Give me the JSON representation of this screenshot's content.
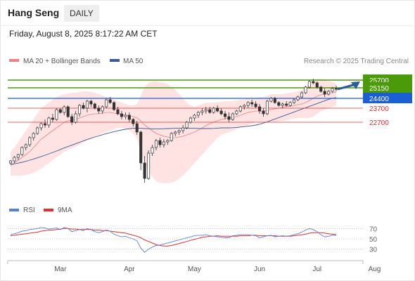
{
  "header": {
    "title": "Hang Seng",
    "period": "DAILY",
    "date": "Friday, August 8, 2025 8:17:22 AM CET"
  },
  "legend": {
    "bb_label": "MA 20 + Bollinger Bands",
    "ma50_label": "MA 50",
    "credit": "Research © 2025 Trading Central"
  },
  "rsi_legend": {
    "rsi_label": "RSI",
    "ma_label": "9MA"
  },
  "colors": {
    "up": "#ffffff",
    "down": "#333333",
    "band": "#ffd9d9",
    "ma20": "#f08080",
    "ma50": "#3a5a9a",
    "resistance": "#4a9a0a",
    "pivot": "#1a5fd4",
    "support": "#e03030",
    "rsi": "#5b7fd6",
    "rsi_ma": "#e03030",
    "arrow": "#2a5aa0"
  },
  "chart_data": [
    {
      "type": "candlestick",
      "x_labels": [
        "Mar",
        "Apr",
        "May",
        "Jun",
        "Jul",
        "Aug"
      ],
      "ylim": [
        18000,
        26400
      ],
      "levels": [
        {
          "label": "25700",
          "value": 25700,
          "kind": "resistance"
        },
        {
          "label": "25150",
          "value": 25150,
          "kind": "resistance"
        },
        {
          "label": "24400",
          "value": 24400,
          "kind": "pivot"
        },
        {
          "label": "23700",
          "value": 23700,
          "kind": "support"
        },
        {
          "label": "22700",
          "value": 22700,
          "kind": "support"
        }
      ],
      "ohlc": [
        [
          19800,
          20000,
          19700,
          19950
        ],
        [
          19950,
          20300,
          19800,
          20200
        ],
        [
          20200,
          20450,
          20000,
          20400
        ],
        [
          20400,
          21000,
          20300,
          20900
        ],
        [
          20900,
          21200,
          20700,
          21100
        ],
        [
          21100,
          21700,
          20950,
          21600
        ],
        [
          21600,
          22000,
          21400,
          21900
        ],
        [
          21900,
          22400,
          21800,
          22300
        ],
        [
          22300,
          22700,
          22100,
          22600
        ],
        [
          22600,
          22900,
          22300,
          22500
        ],
        [
          22500,
          23100,
          22300,
          23000
        ],
        [
          23000,
          23300,
          22700,
          22900
        ],
        [
          22900,
          23700,
          22800,
          23600
        ],
        [
          23600,
          23700,
          23300,
          23400
        ],
        [
          23400,
          23900,
          23200,
          23800
        ],
        [
          23800,
          23900,
          23000,
          23100
        ],
        [
          23100,
          23300,
          22500,
          22700
        ],
        [
          22700,
          23500,
          22600,
          23300
        ],
        [
          23300,
          24000,
          23100,
          23900
        ],
        [
          23900,
          24100,
          23600,
          23700
        ],
        [
          23700,
          24300,
          23400,
          24200
        ],
        [
          24200,
          24300,
          23800,
          24000
        ],
        [
          24000,
          24100,
          23600,
          23700
        ],
        [
          23700,
          23900,
          23300,
          23500
        ],
        [
          23500,
          23900,
          23300,
          23800
        ],
        [
          23800,
          24400,
          23700,
          24300
        ],
        [
          24300,
          24500,
          24000,
          24100
        ],
        [
          24100,
          24200,
          23500,
          23600
        ],
        [
          23600,
          23800,
          23200,
          23300
        ],
        [
          23300,
          23500,
          22900,
          23100
        ],
        [
          23100,
          23400,
          22900,
          23200
        ],
        [
          23200,
          23400,
          22700,
          22900
        ],
        [
          22900,
          23000,
          22400,
          22600
        ],
        [
          22600,
          22800,
          21800,
          22000
        ],
        [
          22000,
          22100,
          19300,
          19800
        ],
        [
          19800,
          20300,
          18400,
          18700
        ],
        [
          18700,
          20700,
          18600,
          20500
        ],
        [
          20500,
          21100,
          20300,
          20900
        ],
        [
          20900,
          21500,
          20700,
          21400
        ],
        [
          21400,
          21600,
          20900,
          21100
        ],
        [
          21100,
          21500,
          20900,
          21300
        ],
        [
          21300,
          21500,
          21100,
          21400
        ],
        [
          21400,
          22000,
          21300,
          21900
        ],
        [
          21900,
          22100,
          21700,
          22000
        ],
        [
          22000,
          22200,
          21800,
          22100
        ],
        [
          22100,
          22500,
          21900,
          22300
        ],
        [
          22300,
          22800,
          22200,
          22700
        ],
        [
          22700,
          23100,
          22600,
          23000
        ],
        [
          23000,
          23300,
          22800,
          23200
        ],
        [
          23200,
          23500,
          23000,
          23400
        ],
        [
          23400,
          23700,
          23200,
          23500
        ],
        [
          23500,
          23800,
          23300,
          23600
        ],
        [
          23600,
          23800,
          23300,
          23400
        ],
        [
          23400,
          23800,
          23300,
          23700
        ],
        [
          23700,
          23900,
          23400,
          23500
        ],
        [
          23500,
          23700,
          23200,
          23300
        ],
        [
          23300,
          23500,
          22900,
          23100
        ],
        [
          23100,
          23400,
          22700,
          22900
        ],
        [
          22900,
          23400,
          22800,
          23300
        ],
        [
          23300,
          23600,
          23200,
          23500
        ],
        [
          23500,
          23900,
          23400,
          23800
        ],
        [
          23800,
          24000,
          23600,
          23900
        ],
        [
          23900,
          24200,
          23700,
          24100
        ],
        [
          24100,
          24300,
          23800,
          24000
        ],
        [
          24000,
          24200,
          23700,
          23800
        ],
        [
          23800,
          24000,
          23300,
          23500
        ],
        [
          23500,
          23700,
          23100,
          23300
        ],
        [
          23300,
          24300,
          23200,
          24200
        ],
        [
          24200,
          24500,
          24100,
          24400
        ],
        [
          24400,
          24500,
          24000,
          24100
        ],
        [
          24100,
          24200,
          23800,
          23900
        ],
        [
          23900,
          24100,
          23700,
          24000
        ],
        [
          24000,
          24200,
          23800,
          23900
        ],
        [
          23900,
          24200,
          23800,
          24100
        ],
        [
          24100,
          24400,
          24000,
          24300
        ],
        [
          24300,
          24600,
          24200,
          24500
        ],
        [
          24500,
          24900,
          24400,
          24800
        ],
        [
          24800,
          25300,
          24700,
          25200
        ],
        [
          25200,
          25700,
          25100,
          25600
        ],
        [
          25600,
          25800,
          25400,
          25500
        ],
        [
          25500,
          25600,
          25100,
          25200
        ],
        [
          25200,
          25300,
          24800,
          24900
        ],
        [
          24900,
          25100,
          24500,
          24700
        ],
        [
          24700,
          25000,
          24600,
          24900
        ],
        [
          24900,
          25200,
          24800,
          25100
        ],
        [
          25100,
          25300,
          24900,
          25050
        ]
      ],
      "ma20": [
        19600,
        19800,
        20000,
        20200,
        20400,
        20600,
        20900,
        21200,
        21500,
        21700,
        21900,
        22100,
        22300,
        22500,
        22700,
        22800,
        22850,
        22900,
        23000,
        23100,
        23200,
        23250,
        23300,
        23300,
        23350,
        23400,
        23400,
        23350,
        23300,
        23250,
        23200,
        23150,
        23100,
        23000,
        22800,
        22500,
        22300,
        22100,
        21900,
        21800,
        21700,
        21650,
        21600,
        21600,
        21650,
        21700,
        21800,
        21900,
        22000,
        22150,
        22300,
        22450,
        22600,
        22700,
        22800,
        22900,
        22950,
        23000,
        23050,
        23100,
        23200,
        23300,
        23400,
        23450,
        23500,
        23500,
        23500,
        23550,
        23600,
        23650,
        23700,
        23750,
        23800,
        23850,
        23900,
        23950,
        24000,
        24100,
        24250,
        24400,
        24550,
        24650,
        24700,
        24750,
        24800,
        24850
      ],
      "bb_upper": [
        20600,
        20900,
        21300,
        21700,
        22100,
        22500,
        22900,
        23300,
        23700,
        23900,
        24100,
        24300,
        24500,
        24600,
        24700,
        24750,
        24800,
        24800,
        24850,
        24900,
        24900,
        24850,
        24800,
        24700,
        24600,
        24500,
        24400,
        24300,
        24200,
        24100,
        24000,
        23900,
        23900,
        24000,
        24600,
        25200,
        25500,
        25600,
        25600,
        25550,
        25500,
        25400,
        25200,
        25000,
        24700,
        24400,
        24100,
        23900,
        23800,
        23900,
        24000,
        24100,
        24100,
        24100,
        24100,
        24150,
        24200,
        24200,
        24200,
        24250,
        24300,
        24350,
        24400,
        24400,
        24450,
        24500,
        24500,
        24600,
        24700,
        24700,
        24700,
        24700,
        24750,
        24800,
        24850,
        24900,
        25000,
        25200,
        25450,
        25700,
        25800,
        25800,
        25750,
        25650,
        25550,
        25450
      ],
      "bb_lower": [
        18900,
        18900,
        18900,
        18900,
        18950,
        19000,
        19100,
        19250,
        19400,
        19600,
        19800,
        20000,
        20200,
        20400,
        20600,
        20750,
        20850,
        20950,
        21100,
        21250,
        21400,
        21550,
        21700,
        21800,
        21900,
        22000,
        22100,
        22200,
        22300,
        22300,
        22200,
        22100,
        21900,
        21500,
        20600,
        19800,
        19200,
        18800,
        18500,
        18400,
        18350,
        18350,
        18400,
        18500,
        18700,
        18900,
        19200,
        19500,
        19800,
        20100,
        20400,
        20700,
        21000,
        21300,
        21600,
        21800,
        21900,
        22000,
        22100,
        22200,
        22300,
        22400,
        22500,
        22600,
        22700,
        22700,
        22700,
        22700,
        22700,
        22700,
        22750,
        22800,
        22850,
        22900,
        22950,
        23000,
        23000,
        23000,
        23000,
        23100,
        23300,
        23500,
        23600,
        23700,
        23800,
        23900
      ],
      "ma50": [
        19700,
        19740,
        19790,
        19850,
        19920,
        20000,
        20080,
        20170,
        20260,
        20350,
        20450,
        20550,
        20650,
        20760,
        20870,
        20970,
        21070,
        21170,
        21270,
        21370,
        21470,
        21560,
        21650,
        21730,
        21810,
        21890,
        21960,
        22030,
        22090,
        22150,
        22200,
        22240,
        22270,
        22280,
        22270,
        22250,
        22240,
        22230,
        22230,
        22230,
        22240,
        22250,
        22260,
        22270,
        22280,
        22280,
        22280,
        22270,
        22270,
        22260,
        22250,
        22250,
        22250,
        22260,
        22280,
        22300,
        22300,
        22300,
        22310,
        22330,
        22360,
        22390,
        22420,
        22450,
        22500,
        22560,
        22640,
        22730,
        22830,
        22930,
        23030,
        23130,
        23230,
        23330,
        23430,
        23530,
        23630,
        23730,
        23830,
        23930,
        24030,
        24130,
        24230,
        24330,
        24400,
        24450
      ]
    },
    {
      "type": "line",
      "x_labels": [
        "Mar",
        "Apr",
        "May",
        "Jun",
        "Jul",
        "Aug"
      ],
      "yticks": [
        70,
        50,
        30
      ],
      "ylim": [
        20,
        80
      ],
      "series": [
        {
          "name": "RSI",
          "values": [
            58,
            60,
            62,
            65,
            66,
            68,
            69,
            70,
            72,
            71,
            69,
            70,
            71,
            68,
            72,
            70,
            64,
            66,
            68,
            66,
            70,
            68,
            64,
            62,
            64,
            67,
            65,
            59,
            56,
            54,
            55,
            52,
            50,
            46,
            32,
            24,
            30,
            34,
            37,
            38,
            40,
            42,
            44,
            46,
            48,
            50,
            52,
            54,
            56,
            57,
            57,
            58,
            56,
            55,
            54,
            53,
            52,
            52,
            56,
            57,
            58,
            58,
            58,
            57,
            56,
            52,
            54,
            56,
            57,
            54,
            55,
            56,
            55,
            56,
            58,
            60,
            63,
            67,
            70,
            68,
            64,
            58,
            54,
            55,
            57,
            57
          ]
        },
        {
          "name": "9MA",
          "values": [
            56,
            57,
            58,
            59,
            60,
            61,
            62,
            63,
            65,
            66,
            67,
            67,
            68,
            69,
            70,
            70,
            69,
            69,
            68,
            68,
            68,
            68,
            67,
            67,
            66,
            66,
            65,
            64,
            63,
            62,
            61,
            59,
            57,
            55,
            52,
            48,
            45,
            42,
            39,
            37,
            36,
            36,
            37,
            39,
            41,
            43,
            45,
            47,
            49,
            51,
            53,
            54,
            55,
            55,
            56,
            55,
            55,
            55,
            55,
            55,
            56,
            56,
            56,
            57,
            57,
            56,
            56,
            56,
            56,
            56,
            55,
            55,
            55,
            55,
            56,
            57,
            58,
            59,
            61,
            62,
            62,
            62,
            61,
            60,
            59,
            58
          ]
        }
      ]
    }
  ]
}
